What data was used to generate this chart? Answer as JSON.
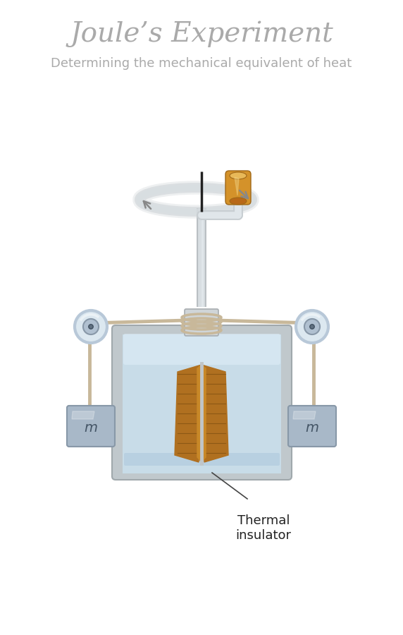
{
  "title": "Joule’s Experiment",
  "subtitle": "Determining the mechanical equivalent of heat",
  "title_color": "#aaaaaa",
  "subtitle_color": "#aaaaaa",
  "bg_color": "#ffffff",
  "title_fontsize": 28,
  "subtitle_fontsize": 13,
  "thermal_label": "Thermal\ninsulator",
  "mass_label": "m",
  "container_fill": "#c8dce8",
  "rope_color": "#c8b89a",
  "pulley_inner": "#dce8f0",
  "pulley_color": "#b8c8d8",
  "mass_color": "#a8b8c8",
  "mass_border": "#8898a8",
  "axle_color": "#222222",
  "rotation_arrow_color": "#888888",
  "knob_color": "#d4922a",
  "knob_dark": "#a06818"
}
